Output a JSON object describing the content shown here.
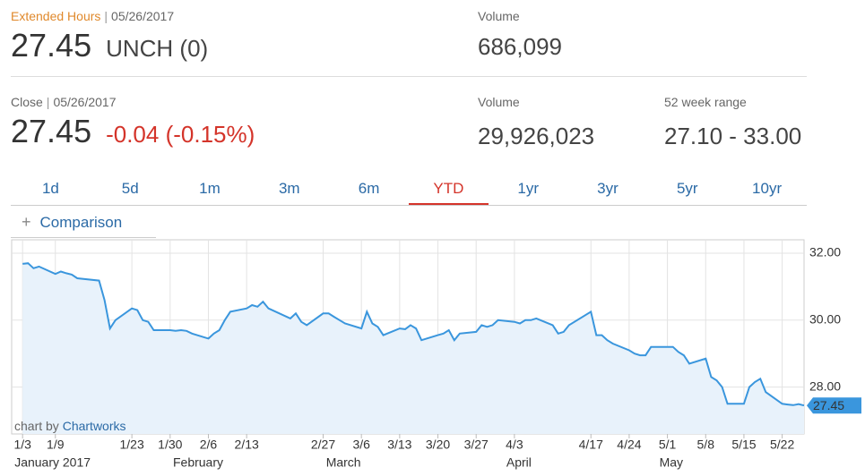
{
  "extended": {
    "label": "Extended Hours",
    "date": "05/26/2017",
    "price": "27.45",
    "change": "UNCH (0)"
  },
  "extended_volume": {
    "label": "Volume",
    "value": "686,099"
  },
  "close": {
    "label": "Close",
    "date": "05/26/2017",
    "price": "27.45",
    "change": "-0.04 (-0.15%)"
  },
  "volume": {
    "label": "Volume",
    "value": "29,926,023"
  },
  "range": {
    "label": "52 week range",
    "value": "27.10 - 33.00"
  },
  "tabs": [
    "1d",
    "5d",
    "1m",
    "3m",
    "6m",
    "YTD",
    "1yr",
    "3yr",
    "5yr",
    "10yr"
  ],
  "active_tab": "YTD",
  "comparison": "Comparison",
  "chart_data": {
    "type": "line",
    "credit": {
      "prefix": "chart by",
      "link": "Chartworks"
    },
    "x": [
      "2017-01-03",
      "2017-01-04",
      "2017-01-05",
      "2017-01-06",
      "2017-01-09",
      "2017-01-10",
      "2017-01-11",
      "2017-01-12",
      "2017-01-13",
      "2017-01-17",
      "2017-01-18",
      "2017-01-19",
      "2017-01-20",
      "2017-01-23",
      "2017-01-24",
      "2017-01-25",
      "2017-01-26",
      "2017-01-27",
      "2017-01-30",
      "2017-01-31",
      "2017-02-01",
      "2017-02-02",
      "2017-02-03",
      "2017-02-06",
      "2017-02-07",
      "2017-02-08",
      "2017-02-09",
      "2017-02-10",
      "2017-02-13",
      "2017-02-14",
      "2017-02-15",
      "2017-02-16",
      "2017-02-17",
      "2017-02-21",
      "2017-02-22",
      "2017-02-23",
      "2017-02-24",
      "2017-02-27",
      "2017-02-28",
      "2017-03-01",
      "2017-03-02",
      "2017-03-03",
      "2017-03-06",
      "2017-03-07",
      "2017-03-08",
      "2017-03-09",
      "2017-03-10",
      "2017-03-13",
      "2017-03-14",
      "2017-03-15",
      "2017-03-16",
      "2017-03-17",
      "2017-03-20",
      "2017-03-21",
      "2017-03-22",
      "2017-03-23",
      "2017-03-24",
      "2017-03-27",
      "2017-03-28",
      "2017-03-29",
      "2017-03-30",
      "2017-03-31",
      "2017-04-03",
      "2017-04-04",
      "2017-04-05",
      "2017-04-06",
      "2017-04-07",
      "2017-04-10",
      "2017-04-11",
      "2017-04-12",
      "2017-04-13",
      "2017-04-17",
      "2017-04-18",
      "2017-04-19",
      "2017-04-20",
      "2017-04-21",
      "2017-04-24",
      "2017-04-25",
      "2017-04-26",
      "2017-04-27",
      "2017-04-28",
      "2017-05-01",
      "2017-05-02",
      "2017-05-03",
      "2017-05-04",
      "2017-05-05",
      "2017-05-08",
      "2017-05-09",
      "2017-05-10",
      "2017-05-11",
      "2017-05-12",
      "2017-05-15",
      "2017-05-16",
      "2017-05-17",
      "2017-05-18",
      "2017-05-19",
      "2017-05-22",
      "2017-05-23",
      "2017-05-24",
      "2017-05-25",
      "2017-05-26"
    ],
    "series": [
      {
        "color": "#3a96dd",
        "fill": "#e8f2fb",
        "values": [
          31.68,
          31.7,
          31.55,
          31.6,
          31.38,
          31.45,
          31.4,
          31.36,
          31.25,
          31.18,
          30.6,
          29.75,
          30.0,
          30.35,
          30.3,
          30.0,
          29.95,
          29.7,
          29.7,
          29.68,
          29.7,
          29.68,
          29.6,
          29.45,
          29.6,
          29.7,
          30.0,
          30.25,
          30.35,
          30.45,
          30.4,
          30.55,
          30.35,
          30.05,
          30.2,
          29.95,
          29.85,
          30.2,
          30.2,
          30.1,
          30.0,
          29.9,
          29.75,
          30.25,
          29.9,
          29.8,
          29.55,
          29.75,
          29.73,
          29.85,
          29.75,
          29.4,
          29.55,
          29.6,
          29.7,
          29.4,
          29.6,
          29.65,
          29.85,
          29.8,
          29.85,
          30.0,
          29.95,
          29.9,
          30.0,
          30.0,
          30.05,
          29.85,
          29.6,
          29.65,
          29.85,
          30.25,
          29.55,
          29.55,
          29.4,
          29.3,
          29.1,
          29.0,
          28.95,
          28.95,
          29.2,
          29.2,
          29.2,
          29.05,
          28.95,
          28.7,
          28.85,
          28.3,
          28.2,
          28.0,
          27.5,
          27.5,
          28.0,
          28.15,
          28.25,
          27.85,
          27.5,
          27.48,
          27.46,
          27.49,
          27.45
        ]
      }
    ],
    "xlim": [
      "2017-01-01",
      "2017-05-26"
    ],
    "xticks": [
      {
        "value": "2017-01-03",
        "label": "1/3"
      },
      {
        "value": "2017-01-09",
        "label": "1/9"
      },
      {
        "value": "2017-01-23",
        "label": "1/23"
      },
      {
        "value": "2017-01-30",
        "label": "1/30"
      },
      {
        "value": "2017-02-06",
        "label": "2/6"
      },
      {
        "value": "2017-02-13",
        "label": "2/13"
      },
      {
        "value": "2017-02-27",
        "label": "2/27"
      },
      {
        "value": "2017-03-06",
        "label": "3/6"
      },
      {
        "value": "2017-03-13",
        "label": "3/13"
      },
      {
        "value": "2017-03-20",
        "label": "3/20"
      },
      {
        "value": "2017-03-27",
        "label": "3/27"
      },
      {
        "value": "2017-04-03",
        "label": "4/3"
      },
      {
        "value": "2017-04-17",
        "label": "4/17"
      },
      {
        "value": "2017-04-24",
        "label": "4/24"
      },
      {
        "value": "2017-05-01",
        "label": "5/1"
      },
      {
        "value": "2017-05-08",
        "label": "5/8"
      },
      {
        "value": "2017-05-15",
        "label": "5/15"
      },
      {
        "value": "2017-05-22",
        "label": "5/22"
      }
    ],
    "month_ticks": [
      {
        "value": "2017-01-03",
        "label": "January 2017"
      },
      {
        "value": "2017-02-01",
        "label": "February"
      },
      {
        "value": "2017-03-01",
        "label": "March"
      },
      {
        "value": "2017-04-03",
        "label": "April"
      },
      {
        "value": "2017-05-01",
        "label": "May"
      }
    ],
    "ylim": [
      26.6,
      32.4
    ],
    "yticks": [
      {
        "value": 28,
        "label": "28.00"
      },
      {
        "value": 30,
        "label": "30.00"
      },
      {
        "value": 32,
        "label": "32.00"
      }
    ],
    "grid": true
  }
}
